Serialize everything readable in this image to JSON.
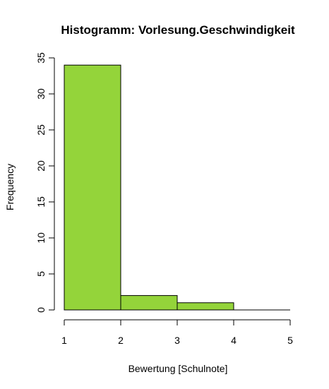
{
  "chart_data": {
    "type": "bar",
    "title": "Histogramm: Vorlesung.Geschwindigkeit",
    "xlabel": "Bewertung [Schulnote]",
    "ylabel": "Frequency",
    "bins": [
      [
        1,
        2
      ],
      [
        2,
        3
      ],
      [
        3,
        4
      ],
      [
        4,
        5
      ]
    ],
    "values": [
      34,
      2,
      1,
      0
    ],
    "x_ticks": [
      1,
      2,
      3,
      4,
      5
    ],
    "y_ticks": [
      0,
      5,
      10,
      15,
      20,
      25,
      30,
      35
    ],
    "xlim": [
      1,
      5
    ],
    "ylim": [
      0,
      35
    ],
    "bar_color": "#94D43A",
    "grid": false,
    "legend": "none"
  }
}
